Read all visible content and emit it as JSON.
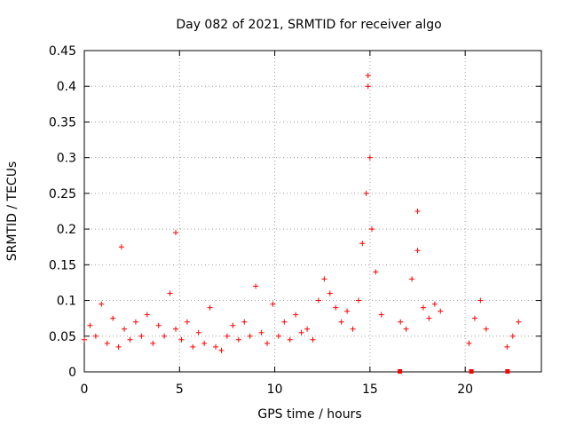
{
  "chart_data": {
    "type": "scatter",
    "title": "Day 082 of 2021, SRMTID for receiver algo",
    "xlabel": "GPS time / hours",
    "ylabel": "SRMTID / TECUs",
    "xlim": [
      0,
      24
    ],
    "ylim": [
      0,
      0.45
    ],
    "x_ticks": [
      0,
      5,
      10,
      15,
      20
    ],
    "x_tick_labels": [
      "0",
      "5",
      "10",
      "15",
      "20"
    ],
    "y_ticks": [
      0,
      0.05,
      0.1,
      0.15,
      0.2,
      0.25,
      0.3,
      0.35,
      0.4,
      0.45
    ],
    "y_tick_labels": [
      "0",
      "0.05",
      "0.1",
      "0.15",
      "0.2",
      "0.25",
      "0.3",
      "0.35",
      "0.4",
      "0.45"
    ],
    "grid": true,
    "marker": "+",
    "color": "#ff0000",
    "series": [
      {
        "name": "SRMTID",
        "x": [
          0.0,
          0.3,
          0.6,
          0.9,
          1.2,
          1.5,
          1.8,
          2.1,
          2.4,
          2.7,
          3.0,
          3.3,
          3.6,
          3.9,
          4.2,
          4.5,
          4.8,
          5.1,
          5.4,
          5.7,
          6.0,
          6.3,
          6.6,
          6.9,
          7.2,
          7.5,
          7.8,
          8.1,
          8.4,
          8.7,
          9.0,
          9.3,
          9.6,
          9.9,
          10.2,
          10.5,
          10.8,
          11.1,
          11.4,
          11.7,
          12.0,
          12.3,
          12.6,
          12.9,
          13.2,
          13.5,
          13.8,
          14.1,
          14.4,
          14.6,
          14.8,
          14.9,
          15.0,
          15.1,
          15.3,
          15.6,
          16.6,
          16.9,
          17.2,
          17.5,
          17.8,
          18.1,
          18.4,
          18.7,
          20.2,
          20.5,
          20.8,
          21.1,
          22.2,
          22.5,
          22.8
        ],
        "y": [
          0.045,
          0.065,
          0.05,
          0.095,
          0.04,
          0.075,
          0.035,
          0.06,
          0.045,
          0.07,
          0.05,
          0.08,
          0.04,
          0.065,
          0.05,
          0.11,
          0.06,
          0.045,
          0.07,
          0.035,
          0.055,
          0.04,
          0.09,
          0.035,
          0.03,
          0.05,
          0.065,
          0.045,
          0.07,
          0.05,
          0.12,
          0.055,
          0.04,
          0.095,
          0.05,
          0.07,
          0.045,
          0.08,
          0.055,
          0.06,
          0.045,
          0.1,
          0.13,
          0.11,
          0.09,
          0.07,
          0.085,
          0.06,
          0.1,
          0.18,
          0.25,
          0.4,
          0.3,
          0.2,
          0.14,
          0.08,
          0.07,
          0.06,
          0.13,
          0.17,
          0.09,
          0.075,
          0.095,
          0.085,
          0.04,
          0.075,
          0.1,
          0.06,
          0.035,
          0.05,
          0.07
        ],
        "spikes": [
          {
            "x": 1.95,
            "y": 0.175
          },
          {
            "x": 4.8,
            "y": 0.195
          },
          {
            "x": 14.9,
            "y": 0.415
          },
          {
            "x": 17.5,
            "y": 0.225
          }
        ],
        "zero_markers": [
          16.55,
          20.3,
          22.2
        ]
      }
    ]
  }
}
